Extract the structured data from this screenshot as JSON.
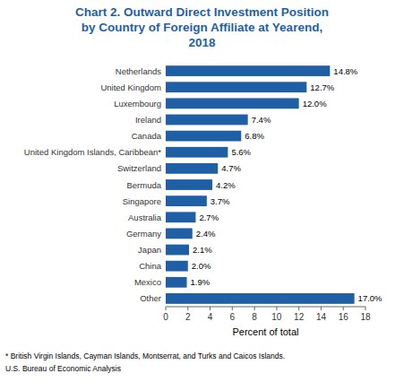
{
  "chart_data": {
    "type": "bar",
    "orientation": "horizontal",
    "title": "Chart 2. Outward Direct Investment Position\nby Country of Foreign Affiliate at Yearend,\n2018",
    "categories": [
      "Other",
      "Mexico",
      "China",
      "Japan",
      "Germany",
      "Australia",
      "Singapore",
      "Bermuda",
      "Switzerland",
      "United Kingdom Islands, Caribbean*",
      "Canada",
      "Ireland",
      "Luxembourg",
      "United Kingdom",
      "Netherlands"
    ],
    "values": [
      17.0,
      1.9,
      2.0,
      2.1,
      2.4,
      2.7,
      3.7,
      4.2,
      4.7,
      5.6,
      6.8,
      7.4,
      12.0,
      12.7,
      14.8
    ],
    "value_labels": [
      "17.0%",
      "1.9%",
      "2.0%",
      "2.1%",
      "2.4%",
      "2.7%",
      "3.7%",
      "4.2%",
      "4.7%",
      "5.6%",
      "6.8%",
      "7.4%",
      "12.0%",
      "12.7%",
      "14.8%"
    ],
    "data_labels": true,
    "color": "#1f5fa6",
    "xlabel": "Percent of total",
    "xlim": [
      0,
      18
    ],
    "xticks": [
      0,
      2,
      4,
      6,
      8,
      10,
      12,
      14,
      16,
      18
    ],
    "grid": false,
    "annotations": [
      "* British Virgin Islands, Cayman Islands, Montserrat, and Turks and Caicos Islands.",
      "U.S. Bureau of Economic Analysis"
    ]
  }
}
